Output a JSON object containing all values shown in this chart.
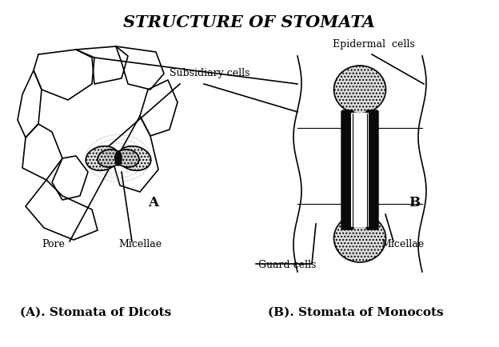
{
  "title": "STRUCTURE OF STOMATA",
  "title_fontsize": 15,
  "bg_color": "#ffffff",
  "labels": {
    "epidermal_cells": "Epidermal  cells",
    "subsidiary_cells": "Subsidiary cells",
    "guard_cells": "Guard cells",
    "pore": "Pore",
    "micellae_A": "Micellae",
    "micellae_B": "Micellae",
    "A": "A",
    "B": "B",
    "caption_A": "(A). Stomata of Dicots",
    "caption_B": "(B). Stomata of Monocots"
  },
  "line_color": "#000000"
}
